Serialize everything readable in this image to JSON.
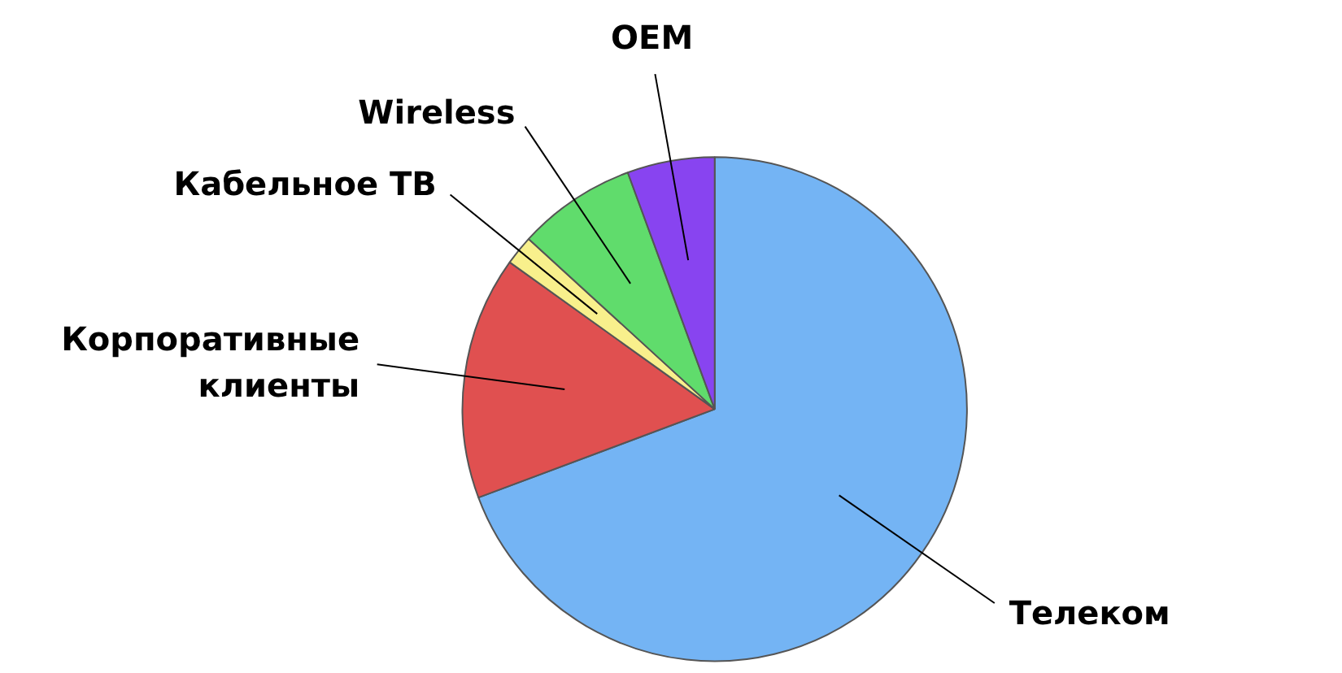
{
  "chart_data": {
    "type": "pie",
    "categories": [
      "Телеком",
      "Корпоративные\nклиенты",
      "Кабельное ТВ",
      "Wireless",
      "OEM"
    ],
    "values": [
      69.3,
      15.6,
      1.9,
      7.6,
      5.6
    ],
    "colors": [
      "#74b4f4",
      "#e05050",
      "#f8f08c",
      "#60dc6c",
      "#8844f0"
    ]
  }
}
